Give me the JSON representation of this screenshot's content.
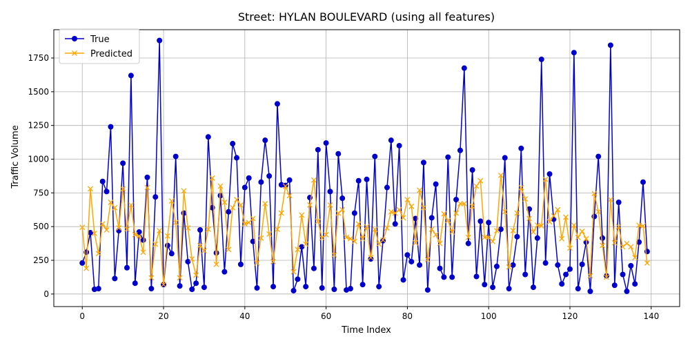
{
  "chart_data": {
    "type": "line",
    "title": "Street: HYLAN BOULEVARD (using all features)",
    "xlabel": "Time Index",
    "ylabel": "Traffic Volume",
    "xlim": [
      -7,
      147
    ],
    "ylim": [
      -93,
      1960
    ],
    "xticks": [
      0,
      20,
      40,
      60,
      80,
      100,
      120,
      140
    ],
    "yticks": [
      0,
      250,
      500,
      750,
      1000,
      1250,
      1500,
      1750
    ],
    "grid": true,
    "legend_position": "upper left",
    "series": [
      {
        "name": "True",
        "color": "#0000cc",
        "marker": "circle",
        "values": [
          230,
          310,
          455,
          35,
          40,
          835,
          760,
          1240,
          115,
          470,
          970,
          195,
          1620,
          80,
          460,
          400,
          865,
          40,
          720,
          1880,
          70,
          360,
          300,
          1020,
          60,
          600,
          240,
          35,
          80,
          475,
          50,
          1165,
          640,
          305,
          730,
          165,
          610,
          1115,
          1010,
          220,
          790,
          860,
          390,
          45,
          830,
          1140,
          875,
          55,
          1410,
          810,
          805,
          845,
          25,
          110,
          350,
          55,
          715,
          190,
          1070,
          45,
          1120,
          760,
          35,
          1040,
          710,
          30,
          40,
          600,
          840,
          70,
          850,
          260,
          1020,
          55,
          395,
          790,
          1140,
          520,
          1100,
          105,
          290,
          240,
          560,
          215,
          975,
          30,
          565,
          815,
          190,
          125,
          1015,
          125,
          700,
          1065,
          1675,
          375,
          920,
          130,
          540,
          70,
          530,
          50,
          205,
          480,
          1010,
          40,
          215,
          425,
          1080,
          145,
          630,
          50,
          415,
          1740,
          230,
          890,
          555,
          215,
          75,
          145,
          185,
          1790,
          40,
          220,
          385,
          20,
          575,
          1020,
          415,
          135,
          1845,
          65,
          680,
          145,
          20,
          210,
          75,
          385,
          830,
          315
        ]
      },
      {
        "name": "Predicted",
        "color": "#ffa500",
        "marker": "x",
        "values": [
          495,
          190,
          780,
          450,
          300,
          520,
          475,
          680,
          640,
          490,
          780,
          480,
          660,
          440,
          430,
          310,
          790,
          120,
          370,
          470,
          70,
          430,
          690,
          530,
          120,
          765,
          490,
          260,
          140,
          360,
          320,
          480,
          860,
          220,
          800,
          680,
          330,
          640,
          700,
          660,
          520,
          530,
          560,
          230,
          415,
          670,
          445,
          240,
          480,
          600,
          800,
          730,
          165,
          330,
          585,
          370,
          660,
          845,
          540,
          415,
          440,
          660,
          290,
          600,
          625,
          420,
          410,
          390,
          520,
          410,
          500,
          270,
          480,
          370,
          400,
          490,
          610,
          600,
          625,
          565,
          700,
          650,
          380,
          770,
          640,
          255,
          480,
          440,
          375,
          595,
          545,
          460,
          600,
          670,
          670,
          420,
          650,
          800,
          840,
          420,
          420,
          390,
          470,
          880,
          610,
          200,
          470,
          600,
          790,
          705,
          560,
          460,
          510,
          505,
          850,
          535,
          580,
          625,
          410,
          570,
          340,
          510,
          420,
          465,
          410,
          135,
          745,
          610,
          360,
          125,
          700,
          380,
          500,
          350,
          375,
          350,
          270,
          510,
          505,
          230
        ]
      }
    ]
  }
}
